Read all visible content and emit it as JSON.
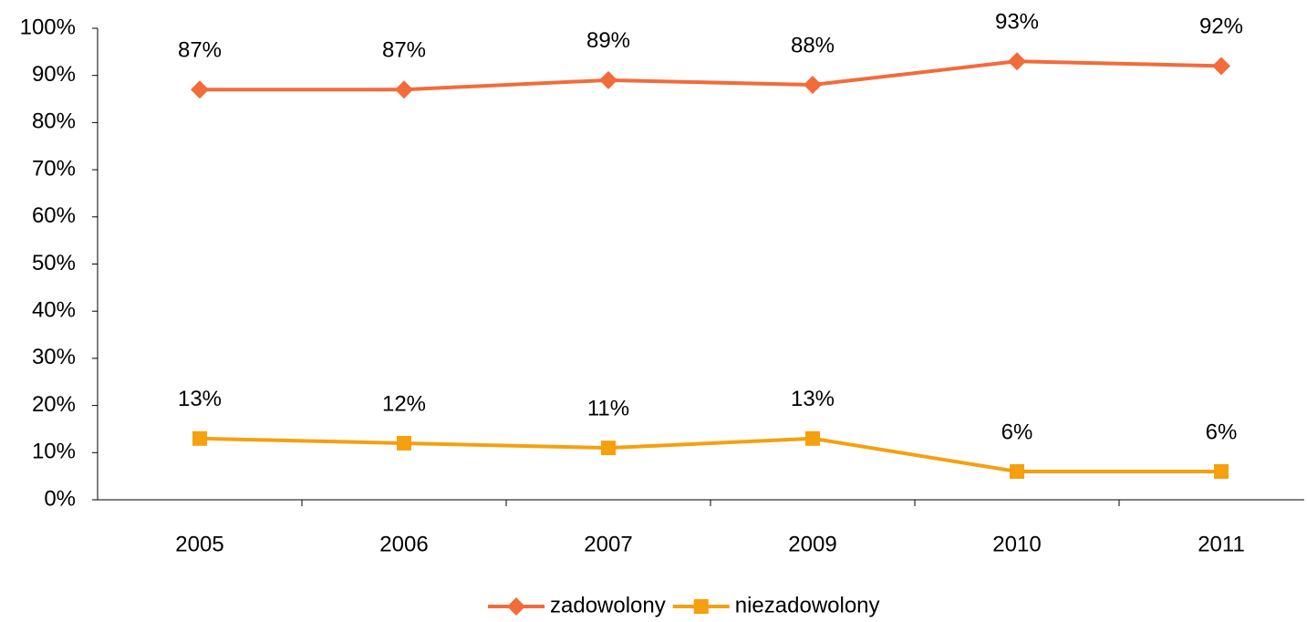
{
  "chart_data": {
    "type": "line",
    "categories": [
      "2005",
      "2006",
      "2007",
      "2009",
      "2010",
      "2011"
    ],
    "series": [
      {
        "name": "zadowolony",
        "color": "#f26b3a",
        "marker": "diamond",
        "values": [
          87,
          87,
          89,
          88,
          93,
          92
        ],
        "value_labels": [
          "87%",
          "87%",
          "89%",
          "88%",
          "93%",
          "92%"
        ]
      },
      {
        "name": "niezadowolony",
        "color": "#f5a00f",
        "marker": "square",
        "values": [
          13,
          12,
          11,
          13,
          6,
          6
        ],
        "value_labels": [
          "13%",
          "12%",
          "11%",
          "13%",
          "6%",
          "6%"
        ]
      }
    ],
    "ylim": [
      0,
      100
    ],
    "yticks": [
      {
        "value": 0,
        "label": "0%"
      },
      {
        "value": 10,
        "label": "10%"
      },
      {
        "value": 20,
        "label": "20%"
      },
      {
        "value": 30,
        "label": "30%"
      },
      {
        "value": 40,
        "label": "40%"
      },
      {
        "value": 50,
        "label": "50%"
      },
      {
        "value": 60,
        "label": "60%"
      },
      {
        "value": 70,
        "label": "70%"
      },
      {
        "value": 80,
        "label": "80%"
      },
      {
        "value": 90,
        "label": "90%"
      },
      {
        "value": 100,
        "label": "100%"
      }
    ],
    "legend": "bottom"
  }
}
